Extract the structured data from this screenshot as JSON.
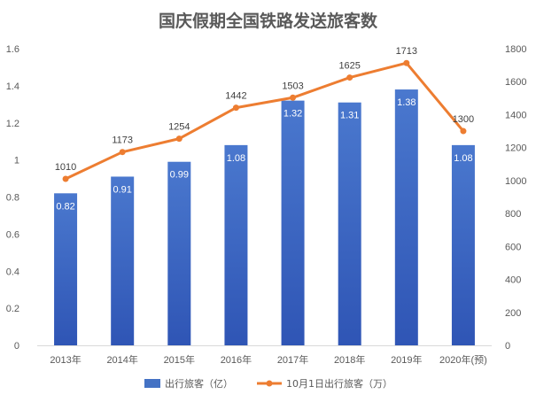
{
  "chart_data": {
    "type": "bar",
    "title": "国庆假期全国铁路发送旅客数",
    "categories": [
      "2013年",
      "2014年",
      "2015年",
      "2016年",
      "2017年",
      "2018年",
      "2019年",
      "2020年(预)"
    ],
    "series": [
      {
        "name": "出行旅客（亿）",
        "type": "bar",
        "axis": "left",
        "color": "#4472C4",
        "values": [
          0.82,
          0.91,
          0.99,
          1.08,
          1.32,
          1.31,
          1.38,
          1.08
        ],
        "labels": [
          "0.82",
          "0.91",
          "0.99",
          "1.08",
          "1.32",
          "1.31",
          "1.38",
          "1.08"
        ]
      },
      {
        "name": "10月1日出行旅客（万）",
        "type": "line",
        "axis": "right",
        "color": "#ED7D31",
        "values": [
          1010,
          1173,
          1254,
          1442,
          1503,
          1625,
          1713,
          1300
        ],
        "labels": [
          "1010",
          "1173",
          "1254",
          "1442",
          "1503",
          "1625",
          "1713",
          "1300"
        ]
      }
    ],
    "y_left": {
      "ylim": [
        0,
        1.6
      ],
      "ticks": [
        "0",
        "0.2",
        "0.4",
        "0.6",
        "0.8",
        "1",
        "1.2",
        "1.4",
        "1.6"
      ]
    },
    "y_right": {
      "ylim": [
        0,
        1800
      ],
      "ticks": [
        "0",
        "200",
        "400",
        "600",
        "800",
        "1000",
        "1200",
        "1400",
        "1600",
        "1800"
      ]
    },
    "grid": false,
    "legend": "bottom"
  }
}
